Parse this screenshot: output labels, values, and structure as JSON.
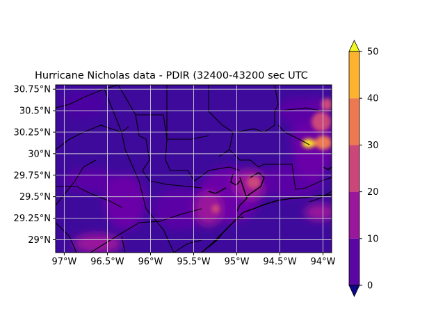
{
  "title": "Hurricane Nicholas data - PDIR (32400-43200 sec UTC",
  "map": {
    "lon_range": [
      -97.1,
      -93.9
    ],
    "lat_range": [
      28.85,
      30.8
    ],
    "lon_ticks": [
      -97,
      -96.5,
      -96,
      -95.5,
      -95,
      -94.5,
      -94
    ],
    "lon_tick_labels": [
      "97°W",
      "96.5°W",
      "96°W",
      "95.5°W",
      "95°W",
      "94.5°W",
      "94°W"
    ],
    "lat_ticks": [
      29,
      29.25,
      29.5,
      29.75,
      30,
      30.25,
      30.5,
      30.75
    ],
    "lat_tick_labels": [
      "29°N",
      "29.25°N",
      "29.5°N",
      "29.75°N",
      "30°N",
      "30.25°N",
      "30.5°N",
      "30.75°N"
    ],
    "grid": true,
    "colormap": "plasma"
  },
  "colorbar": {
    "ticks": [
      0,
      10,
      20,
      30,
      40,
      50
    ],
    "tick_labels": [
      "0",
      "10",
      "20",
      "30",
      "40",
      "50"
    ],
    "extend": "both",
    "colors": [
      "#0d0887",
      "#5a06a5",
      "#9a179b",
      "#cb4679",
      "#ed7953",
      "#fdb32f",
      "#f0f921"
    ]
  }
}
